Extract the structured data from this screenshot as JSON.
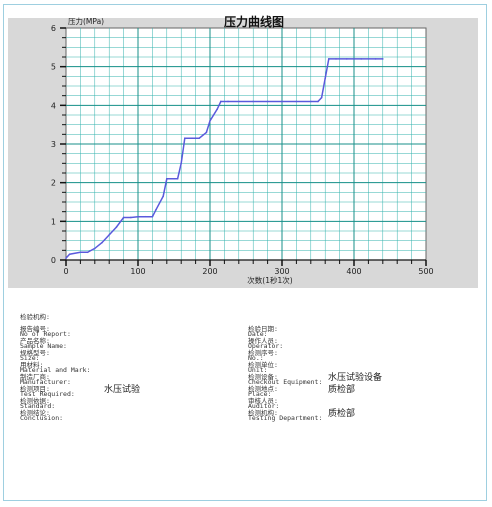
{
  "chart_data": {
    "type": "line",
    "title": "压力曲线图",
    "ylabel": "压力(MPa)",
    "xlabel": "次数(1秒1次)",
    "xlim": [
      0,
      500
    ],
    "ylim": [
      0,
      6
    ],
    "x_ticks": [
      "0",
      "100",
      "200",
      "300",
      "400",
      "500"
    ],
    "y_ticks": [
      "0",
      "1",
      "2",
      "3",
      "4",
      "5",
      "6"
    ],
    "grid": true,
    "series": [
      {
        "color": "#5a5adc",
        "x": [
          0,
          5,
          20,
          30,
          40,
          50,
          60,
          70,
          80,
          90,
          100,
          110,
          120,
          125,
          135,
          140,
          150,
          155,
          160,
          165,
          175,
          180,
          185,
          195,
          200,
          210,
          215,
          225,
          240,
          260,
          280,
          300,
          320,
          340,
          350,
          355,
          360,
          365,
          375,
          390,
          410,
          430,
          440
        ],
        "y": [
          0.05,
          0.15,
          0.2,
          0.2,
          0.3,
          0.45,
          0.65,
          0.85,
          1.1,
          1.1,
          1.12,
          1.12,
          1.12,
          1.3,
          1.65,
          2.1,
          2.1,
          2.1,
          2.5,
          3.15,
          3.15,
          3.15,
          3.15,
          3.3,
          3.6,
          3.9,
          4.1,
          4.1,
          4.1,
          4.1,
          4.1,
          4.1,
          4.1,
          4.1,
          4.1,
          4.2,
          4.7,
          5.2,
          5.2,
          5.2,
          5.2,
          5.2,
          5.2
        ]
      }
    ]
  },
  "report": {
    "org_label": "检验机构:",
    "left": [
      {
        "cn": "报告编号:",
        "en": "No of Report:",
        "value": ""
      },
      {
        "cn": "产品名称:",
        "en": "Sample Name:",
        "value": ""
      },
      {
        "cn": "规格型号:",
        "en": "Size:",
        "value": ""
      },
      {
        "cn": "用材料:",
        "en": "Material and Mark:",
        "value": ""
      },
      {
        "cn": "制造厂商:",
        "en": "Manufacturer:",
        "value": ""
      },
      {
        "cn": "检测项目:",
        "en": "Test Required:",
        "value": "水压试验"
      },
      {
        "cn": "检测依据:",
        "en": "Standard:",
        "value": ""
      },
      {
        "cn": "检测结论:",
        "en": "Conclusion:",
        "value": ""
      }
    ],
    "right": [
      {
        "cn": "检验日期:",
        "en": "Date:",
        "value": ""
      },
      {
        "cn": "操作人员:",
        "en": "Operator:",
        "value": ""
      },
      {
        "cn": "检测序号:",
        "en": "No.:",
        "value": ""
      },
      {
        "cn": "检测单位:",
        "en": "Unit:",
        "value": ""
      },
      {
        "cn": "检测设备:",
        "en": "Checkout Equipment:",
        "value": "水压试验设备"
      },
      {
        "cn": "检测地点:",
        "en": "Place:",
        "value": "质检部"
      },
      {
        "cn": "审核人员:",
        "en": "Auditor:",
        "value": ""
      },
      {
        "cn": "检测机构:",
        "en": "Testing Department:",
        "value": "质检部"
      }
    ]
  }
}
